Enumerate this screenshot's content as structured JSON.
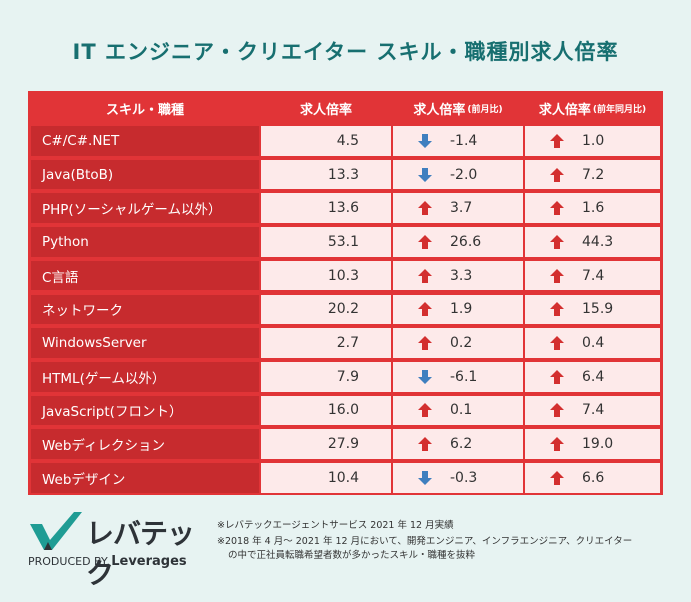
{
  "title": "IT エンジニア・クリエイター スキル・職種別求人倍率",
  "header": {
    "skill": "スキル・職種",
    "rate": "求人倍率",
    "mom_main": "求人倍率",
    "mom_sub": "(前月比)",
    "yoy_main": "求人倍率",
    "yoy_sub": "(前年同月比)"
  },
  "rows": [
    {
      "skill": "C#/C#.NET",
      "rate": "4.5",
      "mom": "-1.4",
      "mom_dir": "down",
      "yoy": "1.0",
      "yoy_dir": "up"
    },
    {
      "skill": "Java(BtoB)",
      "rate": "13.3",
      "mom": "-2.0",
      "mom_dir": "down",
      "yoy": "7.2",
      "yoy_dir": "up"
    },
    {
      "skill": "PHP(ソーシャルゲーム以外）",
      "rate": "13.6",
      "mom": "3.7",
      "mom_dir": "up",
      "yoy": "1.6",
      "yoy_dir": "up"
    },
    {
      "skill": "Python",
      "rate": "53.1",
      "mom": "26.6",
      "mom_dir": "up",
      "yoy": "44.3",
      "yoy_dir": "up"
    },
    {
      "skill": "C言語",
      "rate": "10.3",
      "mom": "3.3",
      "mom_dir": "up",
      "yoy": "7.4",
      "yoy_dir": "up"
    },
    {
      "skill": "ネットワーク",
      "rate": "20.2",
      "mom": "1.9",
      "mom_dir": "up",
      "yoy": "15.9",
      "yoy_dir": "up"
    },
    {
      "skill": "WindowsServer",
      "rate": "2.7",
      "mom": "0.2",
      "mom_dir": "up",
      "yoy": "0.4",
      "yoy_dir": "up"
    },
    {
      "skill": "HTML(ゲーム以外）",
      "rate": "7.9",
      "mom": "-6.1",
      "mom_dir": "down",
      "yoy": "6.4",
      "yoy_dir": "up"
    },
    {
      "skill": "JavaScript(フロント）",
      "rate": "16.0",
      "mom": "0.1",
      "mom_dir": "up",
      "yoy": "7.4",
      "yoy_dir": "up"
    },
    {
      "skill": "Webディレクション",
      "rate": "27.9",
      "mom": "6.2",
      "mom_dir": "up",
      "yoy": "19.0",
      "yoy_dir": "up"
    },
    {
      "skill": "Webデザイン",
      "rate": "10.4",
      "mom": "-0.3",
      "mom_dir": "down",
      "yoy": "6.6",
      "yoy_dir": "up"
    }
  ],
  "colors": {
    "up": "#d32f2f",
    "down": "#3f7fbf"
  },
  "logo": {
    "name": "レバテック",
    "produced_by": "PRODUCED BY",
    "brand": "Leverages"
  },
  "notes": {
    "note1": "※レバテックエージェントサービス 2021 年 12 月実績",
    "note2_l1": "※2018 年 4 月〜 2021 年 12 月において、開発エンジニア、インフラエンジニア、クリエイター",
    "note2_l2": "の中で正社員転職希望者数が多かったスキル・職種を抜粋"
  }
}
